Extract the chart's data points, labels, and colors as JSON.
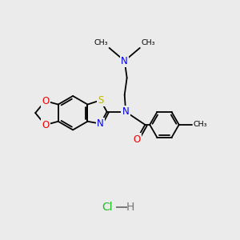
{
  "bg_color": "#ebebeb",
  "bond_color": "#000000",
  "bond_width": 1.3,
  "S_color": "#b8b800",
  "N_color": "#0000ee",
  "O_color": "#ee0000",
  "Cl_color": "#22bb22",
  "H_color": "#777777",
  "C_color": "#000000",
  "label_fontsize": 8.5,
  "hcl_fontsize": 10,
  "figsize": [
    3.0,
    3.0
  ],
  "dpi": 100,
  "xlim": [
    0,
    10
  ],
  "ylim": [
    0,
    10
  ]
}
